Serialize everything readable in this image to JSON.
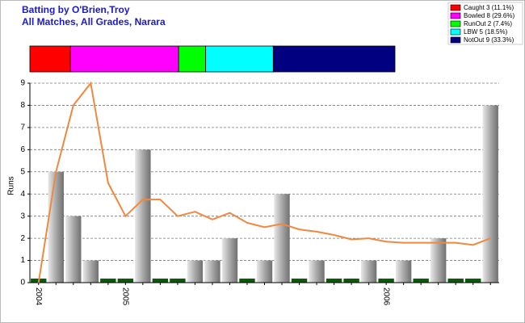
{
  "chart_data": {
    "type": "bar",
    "title": "Batting by O'Brien,Troy",
    "subtitle": "All Matches, All Grades, Narara",
    "y_label": "Runs",
    "categories": [
      "2004",
      null,
      null,
      null,
      null,
      "2005",
      null,
      null,
      null,
      null,
      null,
      null,
      null,
      null,
      null,
      null,
      null,
      null,
      null,
      null,
      "2006",
      null,
      null,
      null,
      null,
      null,
      null
    ],
    "values": [
      0,
      5,
      3,
      1,
      0,
      0,
      6,
      0,
      0,
      1,
      1,
      2,
      0,
      1,
      4,
      0,
      1,
      0,
      0,
      1,
      0,
      1,
      0,
      2,
      0,
      0,
      8
    ],
    "average": [
      0,
      5,
      8,
      9,
      4.5,
      3,
      3.75,
      3.75,
      3,
      3.2,
      2.85,
      3.15,
      2.7,
      2.5,
      2.65,
      2.4,
      2.3,
      2.15,
      1.95,
      2.0,
      1.85,
      1.8,
      1.8,
      1.8,
      1.8,
      1.7,
      2.0
    ],
    "bar_color": "#a0a0a0",
    "zero_color": "#0a5a0a",
    "line_color": "#f08840",
    "ylim": [
      0,
      9
    ],
    "yticks": [
      0,
      1,
      2,
      3,
      4,
      5,
      6,
      7,
      8,
      9
    ],
    "grid": true,
    "dismissals": {
      "labels": [
        "Caught 3 (11.1%)",
        "Bowled 8 (29.6%)",
        "RunOut 2 (7.4%)",
        "LBW 5 (18.5%)",
        "NotOut 9 (33.3%)"
      ],
      "values": [
        3,
        8,
        2,
        5,
        9
      ],
      "colors": [
        "#ff0000",
        "#ff00ff",
        "#00ff00",
        "#00ffff",
        "#000080"
      ]
    }
  }
}
